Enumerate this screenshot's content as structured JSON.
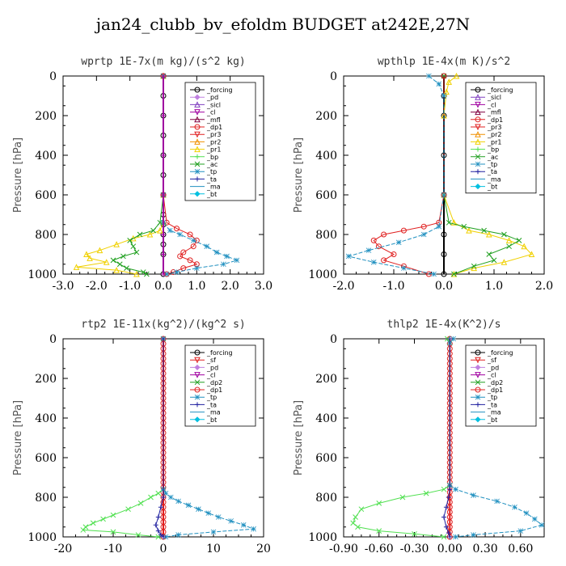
{
  "title": "jan24_clubb_bv_efoldm  BUDGET at242E,27N",
  "chart_data": [
    {
      "type": "line",
      "title": "wprtp  1E-7x(m kg)/(s^2 kg)",
      "ylabel": "Pressure [hPa]",
      "xlim": [
        -3.0,
        3.0
      ],
      "ylim": [
        1000,
        0
      ],
      "xticks": [
        -3.0,
        -2.0,
        -1.0,
        0.0,
        1.0,
        2.0,
        3.0
      ],
      "xtick_labels": [
        "-3.0",
        "-2.0",
        "-1.0",
        "0.0",
        "1.0",
        "2.0",
        "3.0"
      ],
      "yticks": [
        0,
        200,
        400,
        600,
        800,
        1000
      ],
      "legend": [
        "_forcing",
        "_pd",
        "_sicl",
        "_cl",
        "_mfl",
        "_dp1",
        "_pr3",
        "_pr2",
        "_pr1",
        "_bp",
        "_ac",
        "_tp",
        "_ta",
        "_ma",
        "_bt"
      ],
      "legend_position": "top-right",
      "series": [
        {
          "name": "_forcing",
          "color": "#000000",
          "x": [
            0,
            0,
            0,
            0,
            0,
            0,
            0,
            0,
            0,
            0,
            0,
            0,
            0
          ],
          "y": [
            0,
            100,
            200,
            300,
            400,
            500,
            600,
            700,
            750,
            800,
            850,
            900,
            1000
          ]
        },
        {
          "name": "_pr1",
          "color": "#f0d000",
          "x": [
            0,
            0,
            0,
            -0.1,
            -0.4,
            -0.9,
            -1.4,
            -1.9,
            -2.3,
            -2.2,
            -1.7,
            -2.6,
            -1.4,
            -0.8
          ],
          "y": [
            0,
            600,
            740,
            780,
            800,
            820,
            850,
            880,
            900,
            920,
            940,
            965,
            980,
            1000
          ]
        },
        {
          "name": "_ac",
          "color": "#20a020",
          "x": [
            0,
            0,
            -0.1,
            -0.3,
            -0.7,
            -1.0,
            -0.9,
            -0.8,
            -1.2,
            -1.5,
            -1.3,
            -1.1,
            -0.6,
            -0.5
          ],
          "y": [
            0,
            600,
            740,
            780,
            800,
            830,
            860,
            890,
            910,
            930,
            950,
            970,
            990,
            1000
          ]
        },
        {
          "name": "_dp1",
          "color": "#e02020",
          "x": [
            0,
            0,
            0.1,
            0.4,
            0.8,
            1.0,
            0.9,
            0.6,
            0.5,
            0.8,
            1.0,
            0.6,
            0.3,
            0.1
          ],
          "y": [
            0,
            600,
            740,
            770,
            800,
            830,
            860,
            890,
            910,
            930,
            950,
            970,
            990,
            1000
          ]
        },
        {
          "name": "_tp",
          "color": "#2090c0",
          "x": [
            0,
            0,
            0,
            0.2,
            0.5,
            0.9,
            1.3,
            1.6,
            1.9,
            2.2,
            1.8,
            1.0,
            0.4,
            0.1
          ],
          "y": [
            0,
            600,
            740,
            780,
            800,
            830,
            860,
            890,
            910,
            930,
            950,
            970,
            990,
            1000
          ]
        },
        {
          "name": "_bp",
          "color": "#a000a0",
          "x": [
            0,
            0,
            0,
            0,
            0,
            0,
            0
          ],
          "y": [
            0,
            200,
            400,
            600,
            800,
            900,
            1000
          ]
        }
      ]
    },
    {
      "type": "line",
      "title": "wpthlp  1E-4x(m K)/s^2",
      "ylabel": "Pressure [hPa]",
      "xlim": [
        -2.0,
        2.0
      ],
      "ylim": [
        1000,
        0
      ],
      "xticks": [
        -2.0,
        -1.0,
        0.0,
        1.0,
        2.0
      ],
      "xtick_labels": [
        "-2.0",
        "-1.0",
        "0.0",
        "1.0",
        "2.0"
      ],
      "yticks": [
        0,
        200,
        400,
        600,
        800,
        1000
      ],
      "legend": [
        "_forcing",
        "_sicl",
        "_cl",
        "_mfl",
        "_dp1",
        "_pr3",
        "_pr2",
        "_pr1",
        "_bp",
        "_ac",
        "_tp",
        "_ta",
        "_ma",
        "_bt"
      ],
      "legend_position": "top-right",
      "series": [
        {
          "name": "_forcing",
          "color": "#000000",
          "x": [
            0,
            0,
            0,
            0,
            0,
            0,
            0,
            0
          ],
          "y": [
            0,
            100,
            200,
            400,
            600,
            800,
            900,
            1000
          ]
        },
        {
          "name": "_pr1",
          "color": "#f0d000",
          "x": [
            0.25,
            0.1,
            0.05,
            0,
            0,
            0.2,
            0.5,
            0.9,
            1.3,
            1.6,
            1.75,
            1.2,
            0.6,
            0.2
          ],
          "y": [
            0,
            30,
            80,
            200,
            600,
            740,
            780,
            800,
            830,
            860,
            900,
            940,
            970,
            1000
          ]
        },
        {
          "name": "_ac",
          "color": "#20a020",
          "x": [
            0,
            0,
            0.1,
            0.4,
            0.8,
            1.2,
            1.5,
            1.3,
            0.9,
            1.0,
            0.6,
            0.2
          ],
          "y": [
            0,
            600,
            740,
            760,
            780,
            800,
            830,
            860,
            900,
            930,
            960,
            1000
          ]
        },
        {
          "name": "_dp1",
          "color": "#e02020",
          "x": [
            0,
            0,
            -0.1,
            -0.4,
            -0.8,
            -1.2,
            -1.4,
            -1.3,
            -1.0,
            -1.2,
            -0.8,
            -0.3
          ],
          "y": [
            0,
            600,
            740,
            760,
            780,
            800,
            830,
            860,
            900,
            930,
            960,
            1000
          ]
        },
        {
          "name": "_tp",
          "color": "#2090c0",
          "x": [
            -0.3,
            -0.1,
            0,
            0,
            -0.1,
            -0.4,
            -0.9,
            -1.5,
            -1.9,
            -1.4,
            -0.8,
            -0.2
          ],
          "y": [
            0,
            40,
            100,
            600,
            760,
            800,
            840,
            880,
            910,
            940,
            970,
            1000
          ]
        }
      ]
    },
    {
      "type": "line",
      "title": "rtp2  1E-11x(kg^2)/(kg^2 s)",
      "ylabel": "Pressure [hPa]",
      "xlim": [
        -20,
        20
      ],
      "ylim": [
        1000,
        0
      ],
      "xticks": [
        -20,
        -10,
        0,
        10,
        20
      ],
      "xtick_labels": [
        "-20",
        "-10",
        "0",
        "10",
        "20"
      ],
      "yticks": [
        0,
        200,
        400,
        600,
        800,
        1000
      ],
      "legend": [
        "_forcing",
        "_sf",
        "_pd",
        "_cl",
        "_dp2",
        "_dp1",
        "_tp",
        "_ta",
        "_ma",
        "_bt"
      ],
      "legend_position": "top-right",
      "series": [
        {
          "name": "_forcing",
          "color": "#e02020",
          "x": [
            0,
            0,
            0,
            0,
            0,
            0,
            0,
            0,
            0,
            0,
            0,
            0,
            0,
            0,
            0,
            0,
            0,
            0,
            0,
            0,
            0,
            0,
            0,
            0,
            0,
            0,
            0,
            0,
            0,
            0,
            0,
            0,
            0,
            0,
            0,
            0,
            0,
            0,
            0,
            0,
            0
          ],
          "y": [
            0,
            25,
            50,
            75,
            100,
            125,
            150,
            175,
            200,
            225,
            250,
            275,
            300,
            325,
            350,
            375,
            400,
            425,
            450,
            475,
            500,
            525,
            550,
            575,
            600,
            625,
            650,
            675,
            700,
            725,
            750,
            775,
            800,
            825,
            850,
            875,
            900,
            925,
            950,
            975,
            1000
          ]
        },
        {
          "name": "_dp2",
          "color": "#50e050",
          "x": [
            0,
            0,
            -1,
            -2.5,
            -4.5,
            -7,
            -10,
            -12,
            -14,
            -15.5,
            -16,
            -10,
            -5,
            -1
          ],
          "y": [
            0,
            760,
            780,
            800,
            830,
            860,
            890,
            910,
            930,
            950,
            965,
            975,
            990,
            1000
          ]
        },
        {
          "name": "_tp",
          "color": "#2090c0",
          "x": [
            0,
            0,
            0.5,
            1.5,
            3,
            5,
            7,
            9,
            11,
            13.5,
            16,
            18,
            10,
            3,
            0.5
          ],
          "y": [
            0,
            760,
            780,
            800,
            820,
            840,
            860,
            880,
            900,
            920,
            940,
            960,
            975,
            990,
            1000
          ]
        },
        {
          "name": "_ta",
          "color": "#2020a0",
          "x": [
            0,
            0,
            -0.5,
            -1,
            -1.5,
            -1,
            -0.5,
            0
          ],
          "y": [
            0,
            800,
            850,
            900,
            940,
            970,
            990,
            1000
          ]
        }
      ]
    },
    {
      "type": "line",
      "title": "thlp2  1E-4x(K^2)/s",
      "ylabel": "Pressure [hPa]",
      "xlim": [
        -0.9,
        0.8
      ],
      "ylim": [
        1000,
        0
      ],
      "xticks": [
        -0.9,
        -0.6,
        -0.3,
        0.0,
        0.3,
        0.6
      ],
      "xtick_labels": [
        "-0.90",
        "-0.60",
        "-0.30",
        "0.00",
        "0.30",
        "0.60"
      ],
      "yticks": [
        0,
        200,
        400,
        600,
        800,
        1000
      ],
      "legend": [
        "_forcing",
        "_sf",
        "_pd",
        "_cl",
        "_dp2",
        "_dp1",
        "_tp",
        "_ta",
        "_ma",
        "_bt"
      ],
      "legend_position": "top-right",
      "series": [
        {
          "name": "_forcing",
          "color": "#e02020",
          "x": [
            0,
            0,
            0,
            0,
            0,
            0,
            0,
            0,
            0,
            0,
            0,
            0,
            0,
            0,
            0,
            0,
            0,
            0,
            0,
            0,
            0,
            0,
            0,
            0,
            0,
            0,
            0,
            0,
            0,
            0,
            0,
            0,
            0,
            0,
            0,
            0,
            0,
            0,
            0,
            0,
            0
          ],
          "y": [
            0,
            25,
            50,
            75,
            100,
            125,
            150,
            175,
            200,
            225,
            250,
            275,
            300,
            325,
            350,
            375,
            400,
            425,
            450,
            475,
            500,
            525,
            550,
            575,
            600,
            625,
            650,
            675,
            700,
            725,
            750,
            775,
            800,
            825,
            850,
            875,
            900,
            925,
            950,
            975,
            1000
          ]
        },
        {
          "name": "_dp2",
          "color": "#50e050",
          "x": [
            -0.02,
            0,
            0,
            -0.05,
            -0.2,
            -0.4,
            -0.6,
            -0.75,
            -0.8,
            -0.82,
            -0.78,
            -0.6,
            -0.3,
            -0.05
          ],
          "y": [
            0,
            20,
            740,
            760,
            780,
            800,
            830,
            860,
            900,
            930,
            950,
            970,
            985,
            1000
          ]
        },
        {
          "name": "_tp",
          "color": "#2090c0",
          "x": [
            0.03,
            0,
            0,
            0.05,
            0.2,
            0.4,
            0.55,
            0.65,
            0.72,
            0.78,
            0.6,
            0.2,
            0.05
          ],
          "y": [
            0,
            20,
            740,
            760,
            790,
            820,
            850,
            880,
            910,
            940,
            970,
            990,
            1000
          ]
        },
        {
          "name": "_ta",
          "color": "#2020a0",
          "x": [
            0,
            0,
            -0.01,
            -0.03,
            -0.05,
            -0.03,
            -0.01,
            0
          ],
          "y": [
            0,
            760,
            800,
            850,
            900,
            950,
            980,
            1000
          ]
        }
      ]
    }
  ]
}
